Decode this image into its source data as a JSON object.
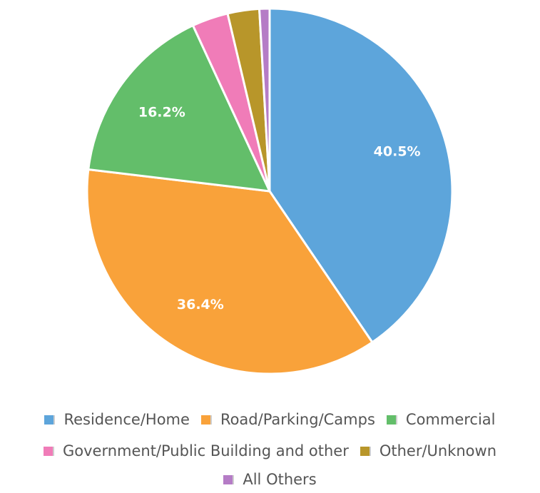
{
  "chart_data": {
    "type": "pie",
    "slices": [
      {
        "name": "Residence/Home",
        "value": 40.5,
        "label": "40.5%",
        "color": "#5DA5DB"
      },
      {
        "name": "Road/Parking/Camps",
        "value": 36.4,
        "label": "36.4%",
        "color": "#F9A23A"
      },
      {
        "name": "Commercial",
        "value": 16.2,
        "label": "16.2%",
        "color": "#63BE6A"
      },
      {
        "name": "Government/Public Building and other",
        "value": 3.2,
        "label": "",
        "color": "#F07CB8"
      },
      {
        "name": "Other/Unknown",
        "value": 2.8,
        "label": "",
        "color": "#B8962A"
      },
      {
        "name": "All Others",
        "value": 0.9,
        "label": "",
        "color": "#B57CC6"
      }
    ],
    "legend_placement": "bottom"
  }
}
